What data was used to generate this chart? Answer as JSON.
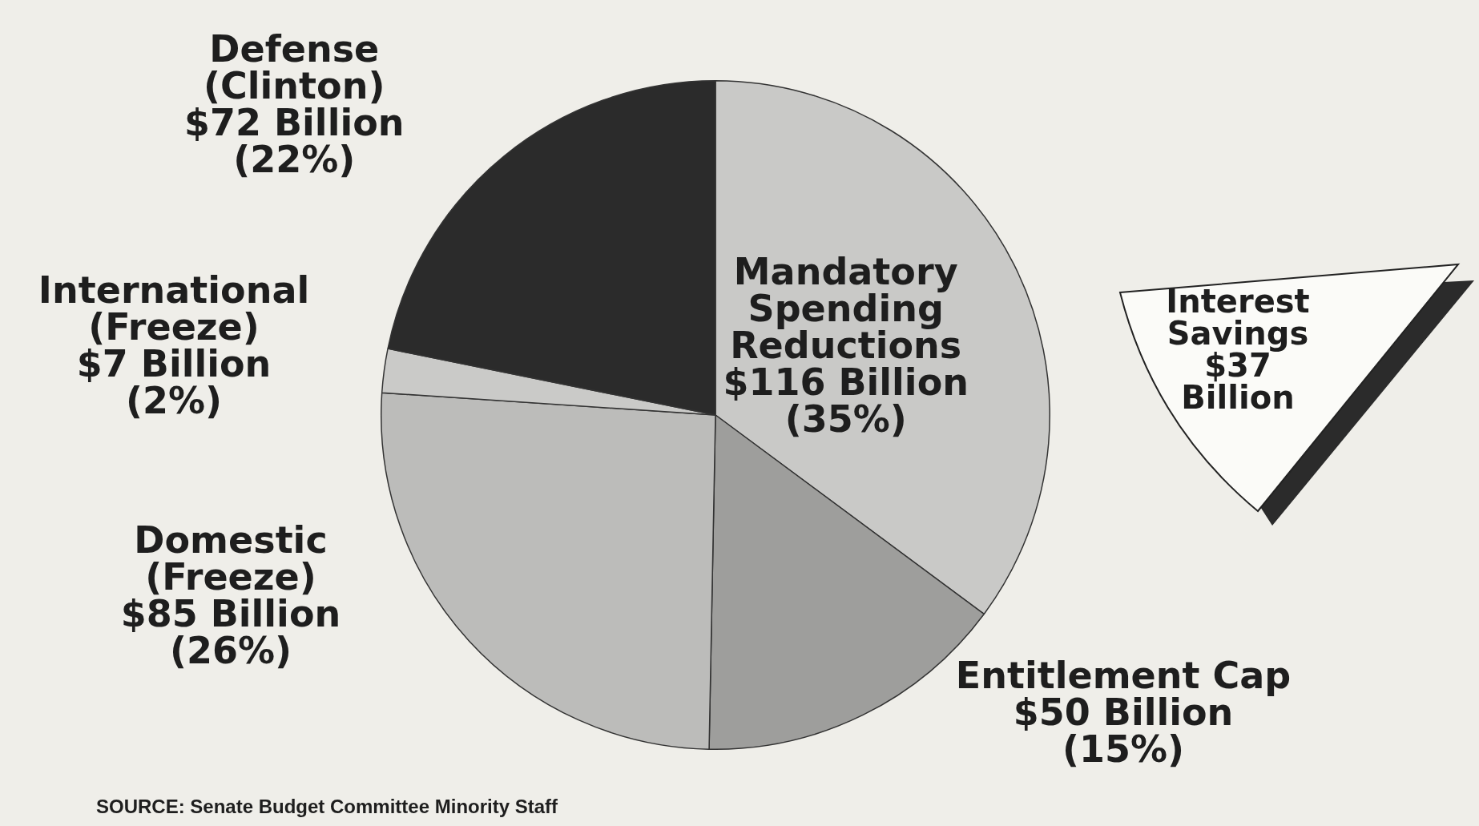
{
  "chart_data": {
    "type": "pie",
    "categories": [
      "Mandatory Spending Reductions",
      "Entitlement Cap",
      "Domestic (Freeze)",
      "International (Freeze)",
      "Defense (Clinton)"
    ],
    "values": [
      116,
      50,
      85,
      7,
      72
    ],
    "value_labels": [
      "$116 Billion (35%)",
      "$50 Billion (15%)",
      "$85 Billion (26%)",
      "$7 Billion (2%)",
      "$72 Billion (22%)"
    ],
    "colors": [
      "#c9c9c7",
      "#9e9e9c",
      "#bcbcba",
      "#cacac8",
      "#2b2b2b"
    ],
    "legend": false,
    "annotations": [
      "Interest Savings $37 Billion",
      "SOURCE: Senate Budget Committee Minority Staff"
    ]
  }
}
